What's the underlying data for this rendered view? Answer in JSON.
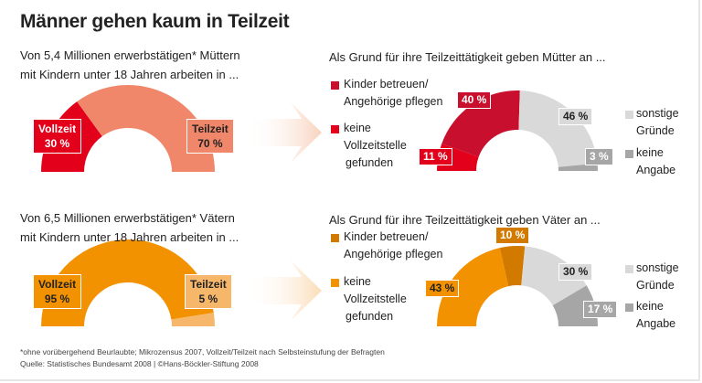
{
  "title": "Männer gehen kaum in Teilzeit",
  "chart_data": [
    {
      "type": "pie",
      "subtitle": [
        "Von 5,4 Millionen erwerbstätigen* Müttern",
        "mit Kindern unter 18 Jahren arbeiten in ..."
      ],
      "categories": [
        "Vollzeit",
        "Teilzeit"
      ],
      "values": [
        30,
        70
      ],
      "labels": [
        "30 %",
        "70 %"
      ],
      "colors": [
        "#e2001a",
        "#f0866a"
      ]
    },
    {
      "type": "pie",
      "title": "Als Grund für ihre Teilzeittätigkeit geben Mütter an ...",
      "categories": [
        "keine Vollzeitstelle gefunden",
        "Kinder betreuen/ Angehörige pflegen",
        "sonstige Gründe",
        "keine Angabe"
      ],
      "values": [
        11,
        40,
        46,
        3
      ],
      "labels": [
        "11 %",
        "40 %",
        "46 %",
        "3 %"
      ],
      "colors": [
        "#e2001a",
        "#c8102e",
        "#d9d9d9",
        "#a6a6a6"
      ]
    },
    {
      "type": "pie",
      "subtitle": [
        "Von 6,5 Millionen erwerbstätigen* Vätern",
        "mit Kindern unter 18 Jahren arbeiten in ..."
      ],
      "categories": [
        "Vollzeit",
        "Teilzeit"
      ],
      "values": [
        95,
        5
      ],
      "labels": [
        "95 %",
        "5 %"
      ],
      "colors": [
        "#f39200",
        "#f7b76a"
      ]
    },
    {
      "type": "pie",
      "title": "Als Grund für ihre Teilzeittätigkeit geben Väter an  ...",
      "categories": [
        "keine Vollzeitstelle gefunden",
        "Kinder betreuen/ Angehörige pflegen",
        "sonstige Gründe",
        "keine Angabe"
      ],
      "values": [
        43,
        10,
        30,
        17
      ],
      "labels": [
        "43 %",
        "10 %",
        "30 %",
        "17 %"
      ],
      "colors": [
        "#f39200",
        "#d27a00",
        "#d9d9d9",
        "#a6a6a6"
      ]
    }
  ],
  "legend": {
    "care": [
      "Kinder betreuen/",
      "Angehörige pflegen"
    ],
    "no_fulltime": [
      "keine",
      "Vollzeitstelle",
      "gefunden"
    ],
    "other": [
      "sonstige",
      "Gründe"
    ],
    "none": [
      "keine",
      "Angabe"
    ]
  },
  "footnote": "*ohne vorübergehend Beurlaubte; Mikrozensus 2007, Vollzeit/Teilzeit nach Selbsteinstufung der Befragten",
  "source": "Quelle: Statistisches Bundesamt 2008 | ©Hans-Böckler-Stiftung 2008"
}
